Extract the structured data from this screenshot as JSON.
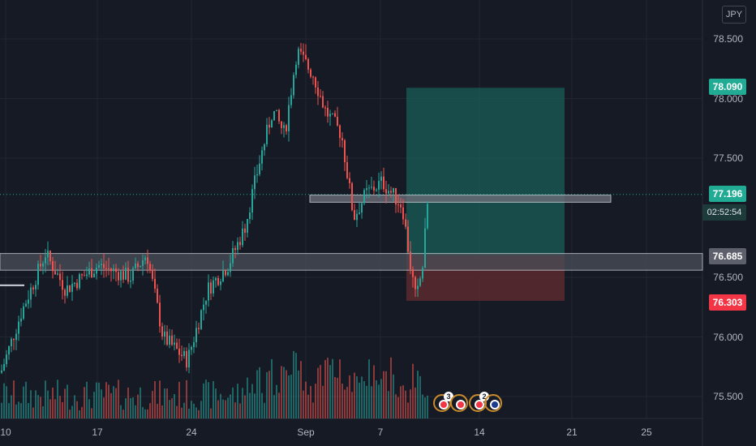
{
  "currency_label": "JPY",
  "price_axis": {
    "ticks": [
      "78.500",
      "78.000",
      "77.500",
      "76.500",
      "76.000",
      "75.500"
    ]
  },
  "time_axis": {
    "ticks": [
      "10",
      "17",
      "24",
      "Sep",
      "7",
      "14",
      "21",
      "25"
    ]
  },
  "badges": {
    "target": "78.090",
    "last_price": "77.196",
    "countdown": "02:52:54",
    "zone": "76.685",
    "stop": "76.303"
  },
  "events": [
    {
      "icon": "jp-flag-icon",
      "count": "3"
    },
    {
      "icon": "jp-flag-icon",
      "count": ""
    },
    {
      "icon": "jp-flag-icon",
      "count": "2"
    },
    {
      "icon": "au-flag-icon",
      "count": ""
    }
  ],
  "colors": {
    "up": "#26a69a",
    "down": "#ef5350",
    "target_zone": "#1a5d57",
    "stop_zone": "#5e2a30",
    "support_zone": "#4a4e58",
    "background": "#161a25"
  },
  "chart_data": {
    "type": "candlestick",
    "title": "",
    "y_range": [
      75.35,
      78.6
    ],
    "price_levels": {
      "entry": 76.685,
      "target": 78.09,
      "stop": 76.303,
      "last": 77.196
    },
    "support_zone": [
      76.56,
      76.7
    ],
    "resistance_zone": [
      77.13,
      77.19
    ],
    "trend": "rise from ~75.6 to ~78.4 near 1 Sep, decline to ~76.3 around 9 Sep, rebound to 77.196"
  }
}
